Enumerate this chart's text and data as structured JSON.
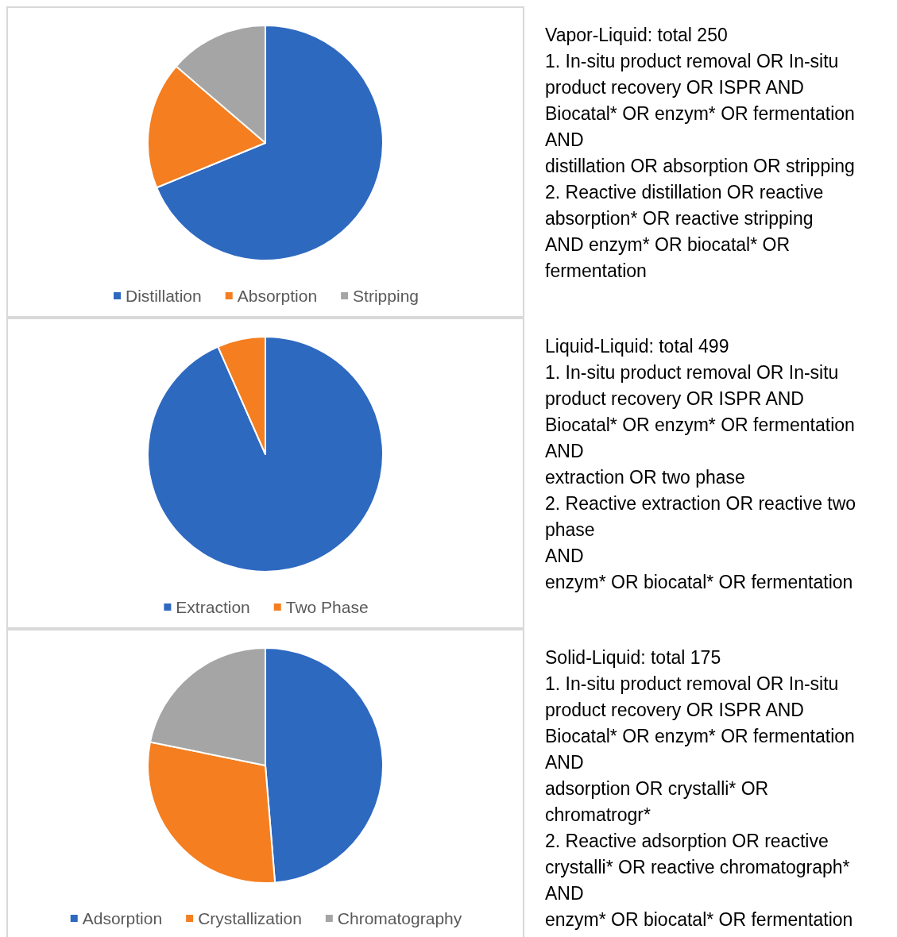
{
  "chart_data": [
    {
      "type": "pie",
      "categories": [
        "Distillation",
        "Absorption",
        "Stripping"
      ],
      "values": [
        68.8,
        17.5,
        13.7
      ],
      "colors": [
        "#2e69c0",
        "#f47e20",
        "#a5a5a5"
      ],
      "legend": "bottom"
    },
    {
      "type": "other",
      "title": "Vapor-Liquid: total 250",
      "annotations": [
        "1. In-situ product removal OR In-situ",
        "product recovery OR ISPR AND",
        "Biocatal* OR enzym* OR fermentation",
        "AND",
        "distillation OR absorption OR stripping",
        "2. Reactive distillation OR reactive",
        "absorption* OR reactive stripping",
        "AND enzym* OR biocatal* OR",
        "fermentation"
      ]
    },
    {
      "type": "pie",
      "categories": [
        "Extraction",
        "Two Phase"
      ],
      "values": [
        93.4,
        6.6
      ],
      "colors": [
        "#2e69c0",
        "#f47e20"
      ],
      "legend": "bottom"
    },
    {
      "type": "other",
      "title": "Liquid-Liquid: total 499",
      "annotations": [
        "1. In-situ product removal OR In-situ",
        "product recovery OR ISPR AND",
        "Biocatal* OR enzym* OR fermentation",
        "AND",
        "extraction OR two phase",
        "2. Reactive extraction OR reactive two",
        "phase",
        "AND",
        "enzym* OR biocatal* OR fermentation"
      ]
    },
    {
      "type": "pie",
      "categories": [
        "Adsorption",
        "Crystallization",
        "Chromatography"
      ],
      "values": [
        48.7,
        29.5,
        21.8
      ],
      "colors": [
        "#2e69c0",
        "#f47e20",
        "#a5a5a5"
      ],
      "legend": "bottom"
    },
    {
      "type": "other",
      "title": "Solid-Liquid: total 175",
      "annotations": [
        "1. In-situ product removal OR In-situ",
        "product recovery OR ISPR AND",
        "Biocatal* OR enzym* OR fermentation",
        "AND",
        "adsorption OR crystalli* OR",
        "chromatrogr*",
        "2. Reactive adsorption OR reactive",
        "crystalli* OR reactive chromatograph*",
        "AND",
        "enzym* OR biocatal* OR fermentation"
      ]
    }
  ]
}
